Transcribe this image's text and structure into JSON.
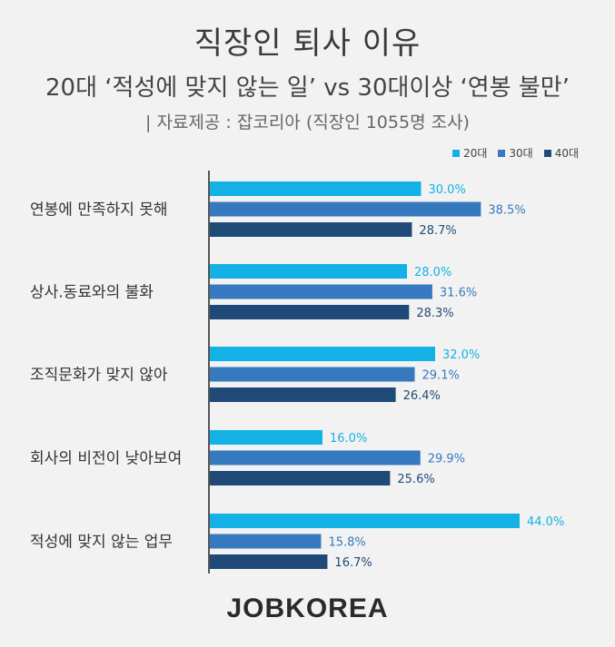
{
  "header": {
    "title": "직장인 퇴사 이유",
    "subtitle": "20대 ‘적성에 맞지 않는 일’ vs 30대이상 ‘연봉 불만’",
    "source": "| 자료제공 : 잡코리아 (직장인 1055명 조사)"
  },
  "footer": {
    "logo": "JOBKOREA"
  },
  "chart_data": {
    "type": "bar",
    "orientation": "horizontal",
    "categories": [
      "연봉에 만족하지 못해",
      "상사.동료와의 불화",
      "조직문화가 맞지 않아",
      "회사의 비전이 낮아보여",
      "적성에 맞지 않는 업무"
    ],
    "series": [
      {
        "name": "20대",
        "color": "#13b1e6",
        "values": [
          30.0,
          28.0,
          32.0,
          16.0,
          44.0
        ],
        "labels": [
          "30.0%",
          "28.0%",
          "32.0%",
          "16.0%",
          "44.0%"
        ]
      },
      {
        "name": "30대",
        "color": "#3679be",
        "values": [
          38.5,
          31.6,
          29.1,
          29.9,
          15.8
        ],
        "labels": [
          "38.5%",
          "31.6%",
          "29.1%",
          "29.9%",
          "15.8%"
        ]
      },
      {
        "name": "40대",
        "color": "#1f4a78",
        "values": [
          28.7,
          28.3,
          26.4,
          25.6,
          16.7
        ],
        "labels": [
          "28.7%",
          "28.3%",
          "26.4%",
          "25.6%",
          "16.7%"
        ]
      }
    ],
    "legend_position": "top-right",
    "grid": false
  }
}
